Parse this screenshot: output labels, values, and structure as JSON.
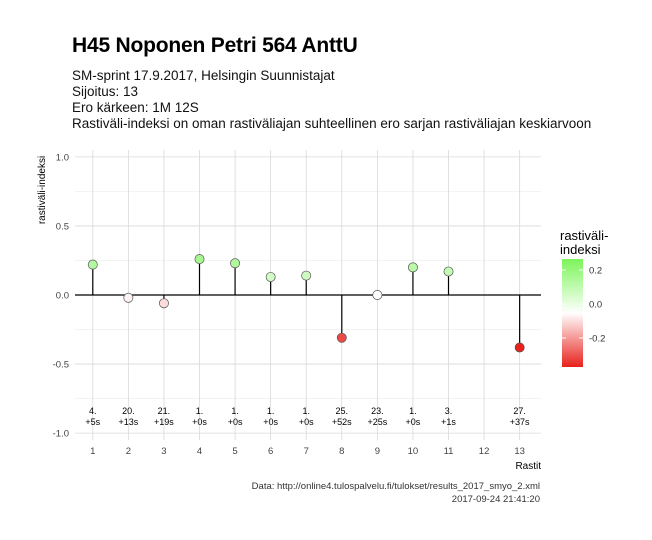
{
  "header": {
    "title": "H45 Noponen Petri 564 AnttU",
    "subtitle_lines": [
      "SM-sprint 17.9.2017, Helsingin Suunnistajat",
      "Sijoitus: 13",
      "Ero kärkeen: 1M 12S",
      "Rastiväli-indeksi on oman rastiväliajan suhteellinen ero sarjan rastiväliajan keskiarvoon"
    ]
  },
  "caption": {
    "line1": "Data: http://online4.tulospalvelu.fi/tulokset/results_2017_smyo_2.xml",
    "line2": "2017-09-24 21:41:20"
  },
  "chart_data": {
    "type": "scatter",
    "xlabel": "Rastit",
    "ylabel": "rastiväli-indeksi",
    "x": [
      1,
      2,
      3,
      4,
      5,
      6,
      7,
      8,
      9,
      10,
      11,
      12,
      13
    ],
    "x_ticks": [
      "1",
      "2",
      "3",
      "4",
      "5",
      "6",
      "7",
      "8",
      "9",
      "10",
      "11",
      "12",
      "13"
    ],
    "y_ticks": [
      "-1.0",
      "-0.5",
      "0.0",
      "0.5",
      "1.0"
    ],
    "ylim": [
      -1.05,
      1.05
    ],
    "xlim": [
      0.5,
      13.6
    ],
    "points": [
      {
        "x": 1,
        "y": 0.22,
        "rank": "4.",
        "diff": "+5s"
      },
      {
        "x": 2,
        "y": -0.02,
        "rank": "20.",
        "diff": "+13s"
      },
      {
        "x": 3,
        "y": -0.06,
        "rank": "21.",
        "diff": "+19s"
      },
      {
        "x": 4,
        "y": 0.26,
        "rank": "1.",
        "diff": "+0s"
      },
      {
        "x": 5,
        "y": 0.23,
        "rank": "1.",
        "diff": "+0s"
      },
      {
        "x": 6,
        "y": 0.13,
        "rank": "1.",
        "diff": "+0s"
      },
      {
        "x": 7,
        "y": 0.14,
        "rank": "1.",
        "diff": "+0s"
      },
      {
        "x": 8,
        "y": -0.31,
        "rank": "25.",
        "diff": "+52s"
      },
      {
        "x": 9,
        "y": 0.0,
        "rank": "23.",
        "diff": "+25s"
      },
      {
        "x": 10,
        "y": 0.2,
        "rank": "1.",
        "diff": "+0s"
      },
      {
        "x": 11,
        "y": 0.17,
        "rank": "3.",
        "diff": "+1s"
      },
      {
        "x": 13,
        "y": -0.38,
        "rank": "27.",
        "diff": "+37s"
      }
    ],
    "legend": {
      "title_lines": [
        "rastiväli-",
        "indeksi"
      ],
      "ticks": [
        "0.2",
        "0.0",
        "-0.2"
      ],
      "position": "right"
    },
    "colors": {
      "high": "#7cf45a",
      "mid": "#ffffff",
      "low": "#e8211c"
    },
    "grid": true
  }
}
